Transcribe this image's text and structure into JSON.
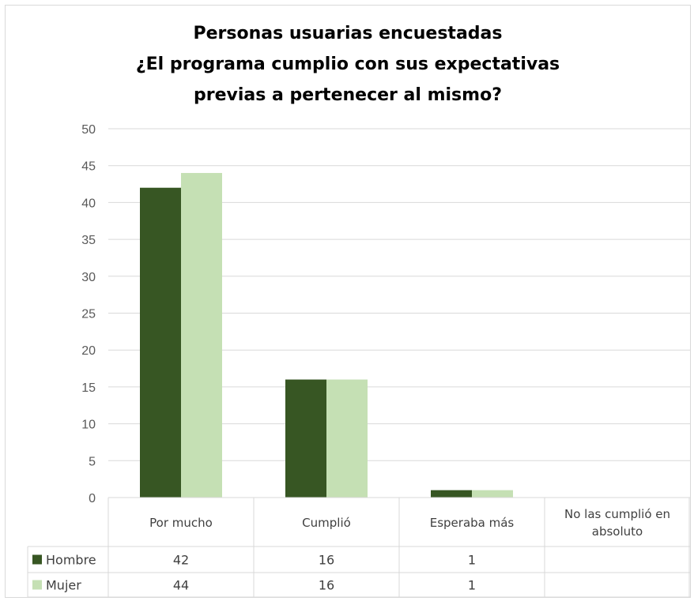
{
  "chart_data": {
    "type": "bar",
    "title_lines": [
      "Personas usuarias encuestadas",
      "¿El programa cumplio con sus expectativas",
      "previas a pertenecer al mismo?"
    ],
    "categories": [
      "Por mucho",
      "Cumplió",
      "Esperaba más",
      "No las cumplió en absoluto"
    ],
    "category_lines": [
      [
        "Por mucho"
      ],
      [
        "Cumplió"
      ],
      [
        "Esperaba más"
      ],
      [
        "No las cumplió en",
        "absoluto"
      ]
    ],
    "series": [
      {
        "name": "Hombre",
        "values": [
          42,
          16,
          1,
          null
        ],
        "color": "#375623"
      },
      {
        "name": "Mujer",
        "values": [
          44,
          16,
          1,
          null
        ],
        "color": "#c5e0b4"
      }
    ],
    "ylim": [
      0,
      50
    ],
    "yticks": [
      0,
      5,
      10,
      15,
      20,
      25,
      30,
      35,
      40,
      45,
      50
    ],
    "grid": true,
    "legend": "data-table"
  }
}
